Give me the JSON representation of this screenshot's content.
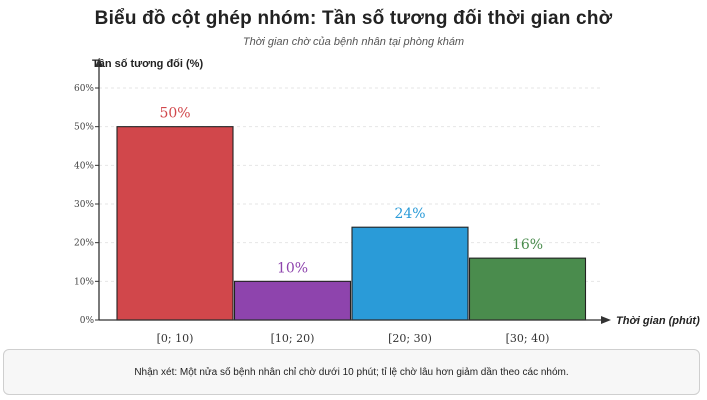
{
  "header": {
    "title": "Biểu đồ cột ghép nhóm: Tần số tương đối thời gian chờ",
    "subtitle": "Thời gian chờ của bệnh nhân tại phòng khám"
  },
  "note": "Nhận xét: Một nửa số bệnh nhân chỉ chờ dưới 10 phút; tỉ lệ chờ lâu hơn giảm dần theo các nhóm.",
  "chart_data": {
    "type": "bar",
    "title": "Biểu đồ cột ghép nhóm: Tần số tương đối thời gian chờ",
    "subtitle": "Thời gian chờ của bệnh nhân tại phòng khám",
    "xlabel": "Thời gian (phút)",
    "ylabel": "Tần số tương đối (%)",
    "categories": [
      "[0; 10)",
      "[10; 20)",
      "[20; 30)",
      "[30; 40)"
    ],
    "values": [
      50,
      10,
      24,
      16
    ],
    "data_labels": [
      "50%",
      "10%",
      "24%",
      "16%"
    ],
    "colors": [
      "#d1474b",
      "#8e44ad",
      "#2a9bd8",
      "#4a8c4d"
    ],
    "ylim": [
      0,
      60
    ],
    "yticks": [
      0,
      10,
      20,
      30,
      40,
      50,
      60
    ],
    "ytick_labels": [
      "0%",
      "10%",
      "20%",
      "30%",
      "40%",
      "50%",
      "60%"
    ],
    "grid": true
  }
}
